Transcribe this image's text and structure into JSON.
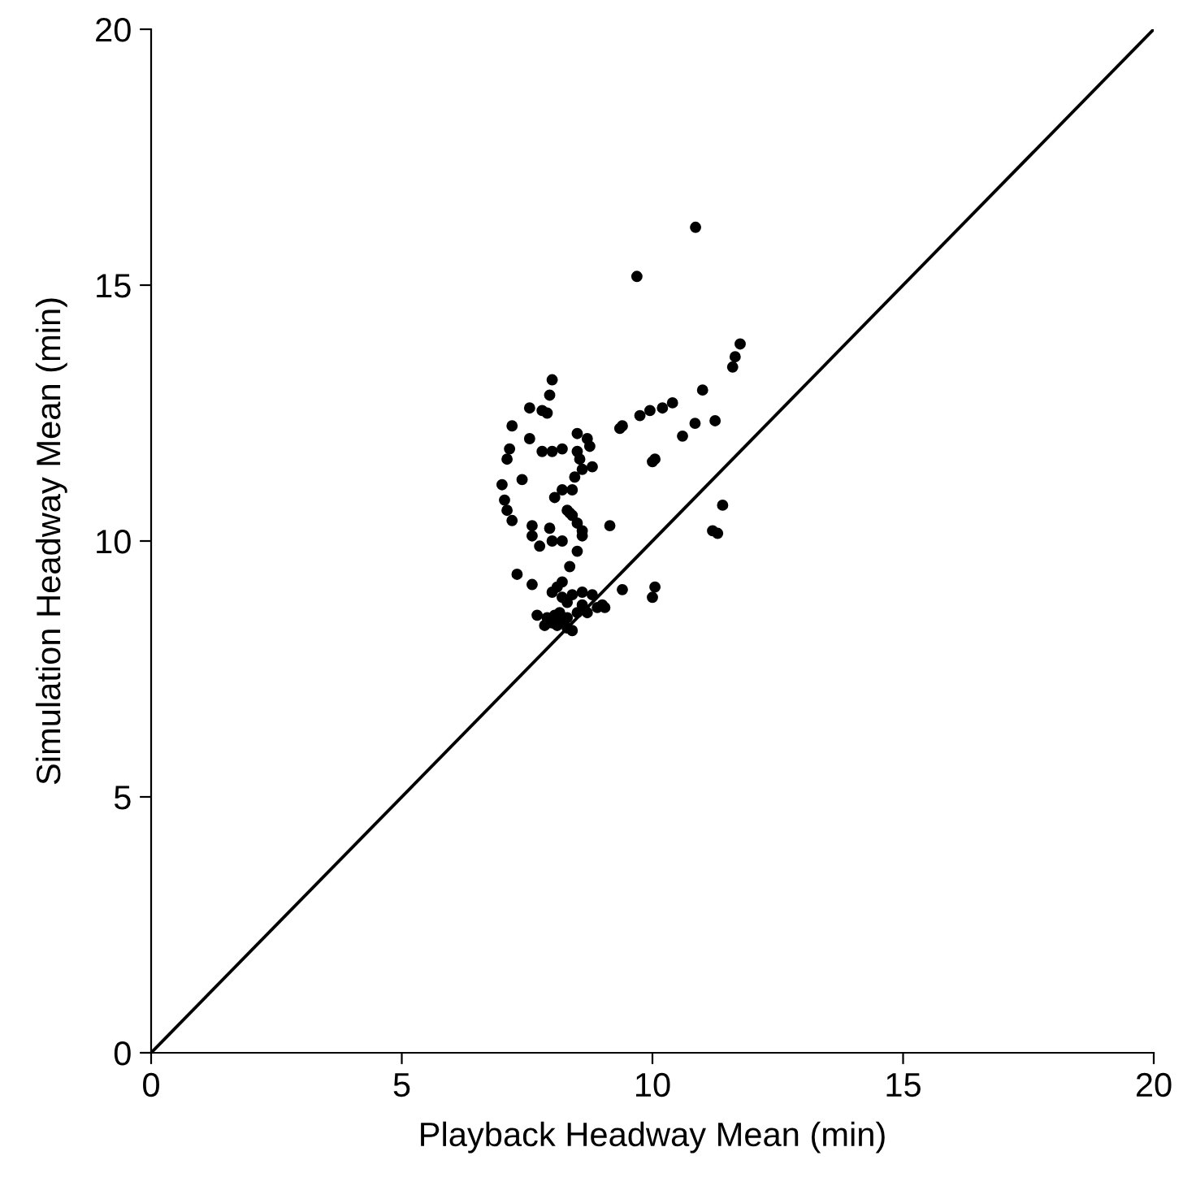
{
  "chart_data": {
    "type": "scatter",
    "xlabel": "Playback Headway Mean (min)",
    "ylabel": "Simulation Headway Mean (min)",
    "xlim": [
      0,
      20
    ],
    "ylim": [
      0,
      20
    ],
    "xticks": [
      0,
      5,
      10,
      15,
      20
    ],
    "yticks": [
      0,
      5,
      10,
      15,
      20
    ],
    "grid": false,
    "marker": "circle",
    "series": [
      {
        "color": "#000000",
        "x": [
          10.86,
          9.69,
          11.75,
          11.65,
          11.6,
          11.0,
          10.4,
          10.2,
          9.95,
          9.75,
          9.4,
          9.35,
          10.85,
          11.25,
          10.6,
          10.05,
          10.0,
          8.0,
          7.95,
          7.8,
          7.9,
          7.55,
          7.2,
          7.15,
          7.1,
          7.4,
          7.55,
          7.8,
          8.0,
          8.2,
          8.5,
          8.7,
          8.75,
          8.5,
          8.55,
          8.6,
          8.8,
          8.45,
          7.0,
          7.05,
          7.1,
          7.2,
          7.6,
          7.95,
          8.0,
          8.3,
          8.4,
          8.5,
          8.6,
          8.2,
          8.05,
          8.2,
          8.4,
          8.35,
          7.6,
          7.75,
          8.6,
          8.5,
          9.15,
          8.35,
          8.2,
          7.3,
          7.6,
          8.0,
          8.1,
          8.2,
          8.3,
          8.4,
          8.6,
          8.8,
          8.9,
          9.0,
          8.7,
          8.5,
          8.3,
          7.7,
          7.9,
          8.0,
          8.1,
          8.2,
          8.3,
          8.4,
          7.85,
          8.6,
          9.4,
          10.0,
          10.05,
          11.2,
          11.3,
          11.4,
          9.05,
          8.15,
          8.05
        ],
        "values": [
          16.13,
          15.17,
          13.85,
          13.6,
          13.4,
          12.95,
          12.7,
          12.6,
          12.55,
          12.45,
          12.25,
          12.2,
          12.3,
          12.35,
          12.05,
          11.6,
          11.55,
          13.15,
          12.85,
          12.55,
          12.5,
          12.6,
          12.25,
          11.8,
          11.6,
          11.2,
          12.0,
          11.75,
          11.75,
          11.8,
          12.1,
          12.0,
          11.85,
          11.75,
          11.6,
          11.4,
          11.45,
          11.25,
          11.1,
          10.8,
          10.6,
          10.4,
          10.3,
          10.25,
          10.0,
          10.6,
          10.5,
          10.35,
          10.2,
          10.0,
          10.85,
          11.0,
          11.0,
          10.55,
          10.1,
          9.9,
          10.1,
          9.8,
          10.3,
          9.5,
          9.2,
          9.35,
          9.15,
          9.0,
          9.1,
          8.9,
          8.8,
          8.95,
          9.0,
          8.95,
          8.7,
          8.75,
          8.6,
          8.6,
          8.5,
          8.55,
          8.5,
          8.4,
          8.35,
          8.45,
          8.3,
          8.25,
          8.35,
          8.75,
          9.05,
          8.9,
          9.1,
          10.2,
          10.15,
          10.7,
          8.7,
          8.6,
          8.55
        ]
      },
      {
        "type": "line",
        "color": "#000000",
        "marker": "none",
        "line_style": "solid",
        "x": [
          0,
          20
        ],
        "values": [
          0,
          20
        ]
      }
    ]
  }
}
